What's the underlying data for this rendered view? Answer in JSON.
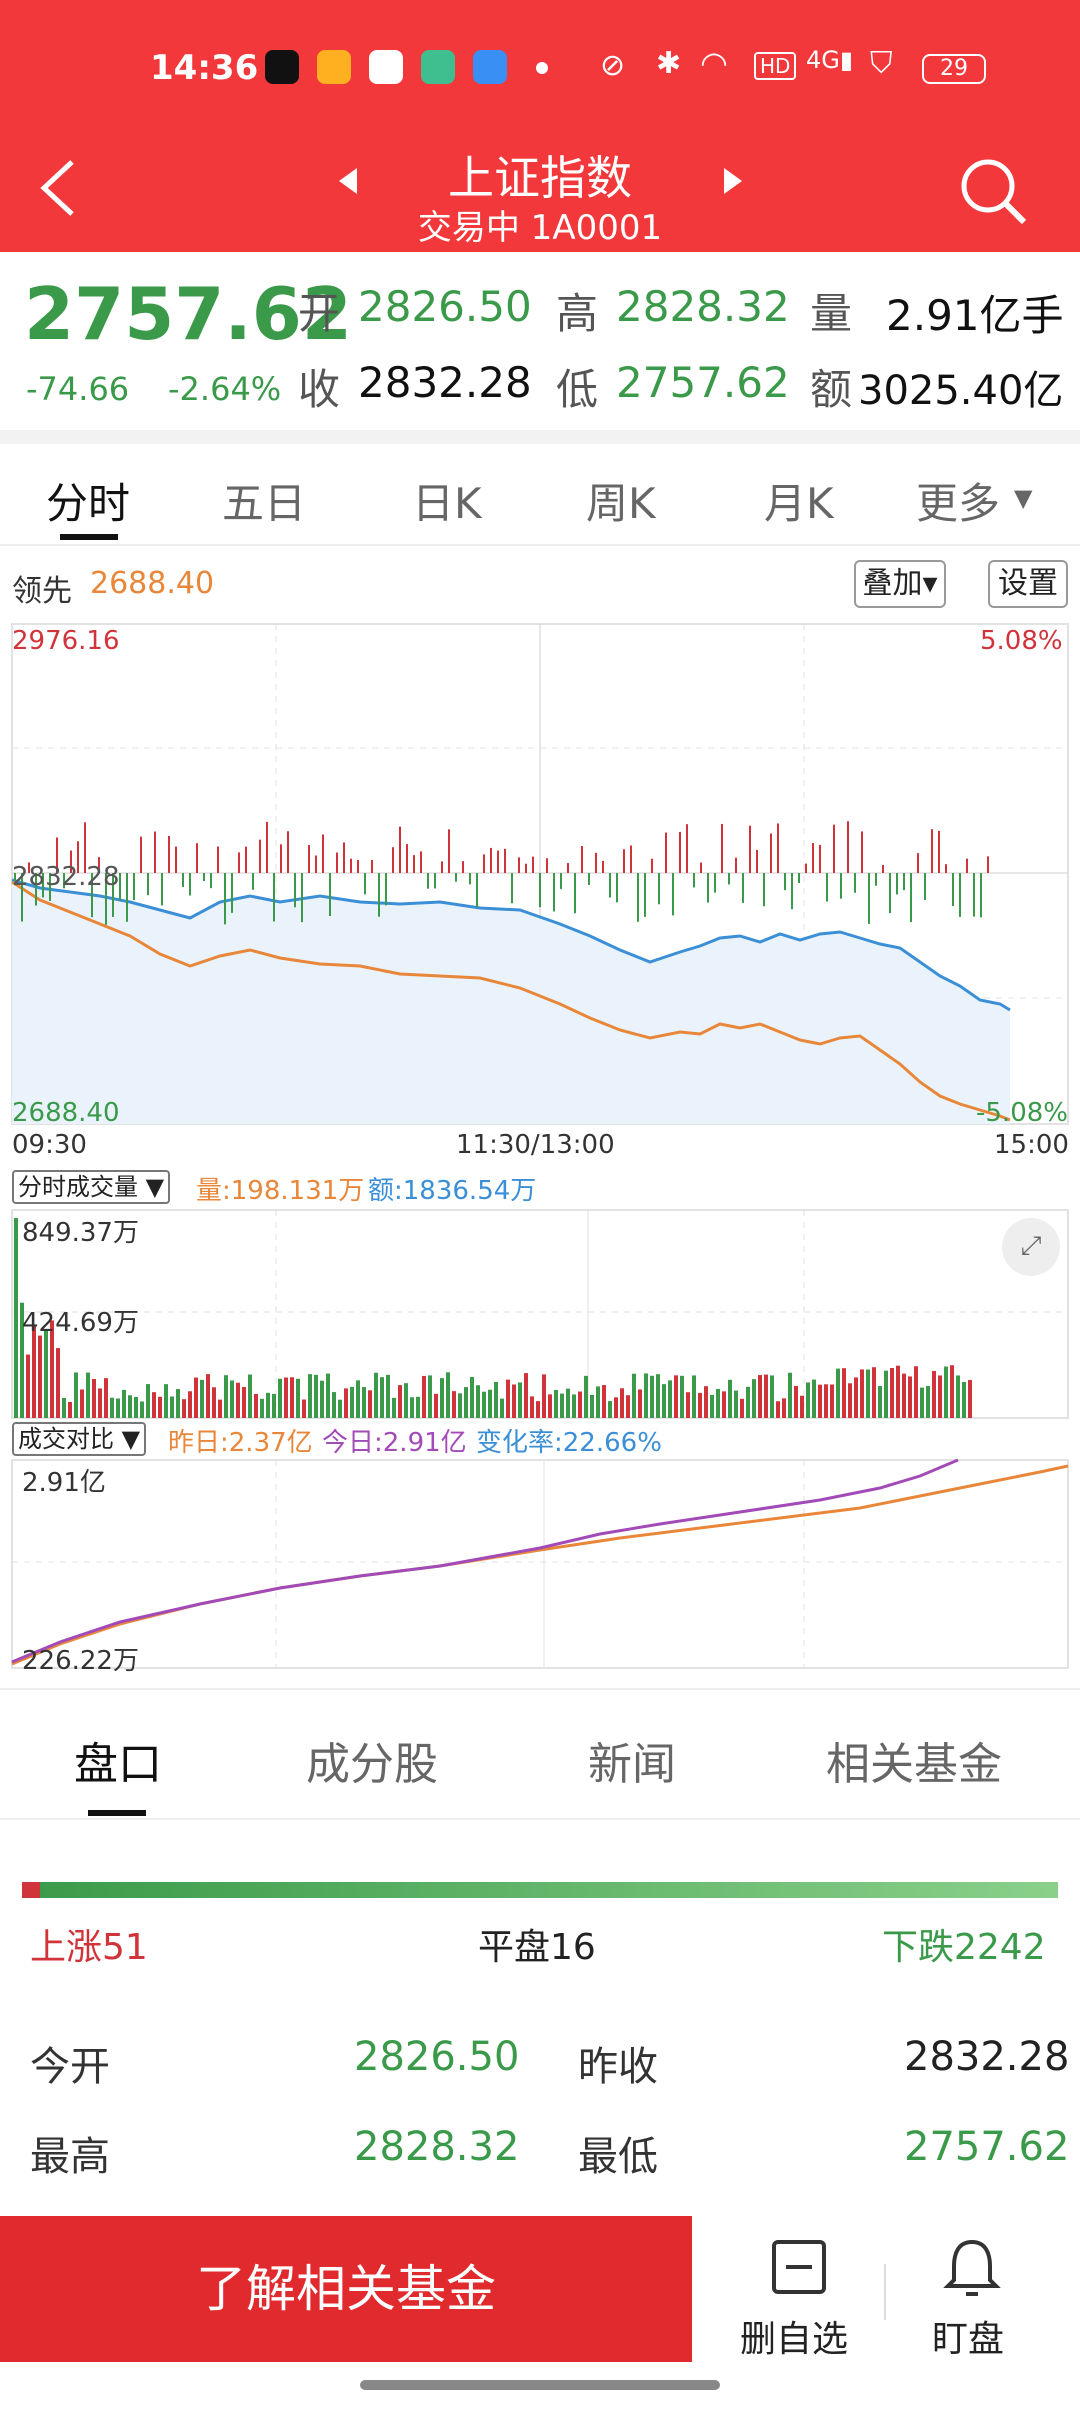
{
  "status": {
    "time": "14:36",
    "battery": "29"
  },
  "header": {
    "title": "上证指数",
    "subtitle": "交易中 1A0001"
  },
  "quote": {
    "price": "2757.62",
    "change": "-74.66",
    "pct": "-2.64%",
    "open_label": "开",
    "open": "2826.50",
    "high_label": "高",
    "high": "2828.32",
    "vol_label": "量",
    "vol": "2.91亿手",
    "close_label": "收",
    "close": "2832.28",
    "low_label": "低",
    "low": "2757.62",
    "amt_label": "额",
    "amt": "3025.40亿"
  },
  "tabs": [
    "分时",
    "五日",
    "日K",
    "周K",
    "月K",
    "更多"
  ],
  "lead": {
    "label": "领先",
    "value": "2688.40",
    "overlay": "叠加▾",
    "settings": "设置"
  },
  "chart_top": {
    "ymax": "2976.16",
    "ymax_pct": "5.08%",
    "mid": "2832.28",
    "ymin": "2688.40",
    "ymin_pct": "-5.08%",
    "t0": "09:30",
    "t1": "11:30/13:00",
    "t2": "15:00"
  },
  "vol_panel": {
    "selector": "分时成交量",
    "vol": "量:198.131万",
    "amt": "额:1836.54万",
    "max": "849.37万",
    "half": "424.69万"
  },
  "cmp_panel": {
    "selector": "成交对比",
    "yday": "昨日:2.37亿",
    "today": "今日:2.91亿",
    "rate": "变化率:22.66%",
    "max": "2.91亿",
    "min": "226.22万"
  },
  "section_tabs": [
    "盘口",
    "成分股",
    "新闻",
    "相关基金"
  ],
  "breadth": {
    "up": "上涨51",
    "flat": "平盘16",
    "down": "下跌2242"
  },
  "details": [
    {
      "l1": "今开",
      "v1": "2826.50",
      "l2": "昨收",
      "v2": "2832.28"
    },
    {
      "l1": "最高",
      "v1": "2828.32",
      "l2": "最低",
      "v2": "2757.62"
    }
  ],
  "bottom": {
    "cta": "了解相关基金",
    "del": "删自选",
    "watch": "盯盘"
  },
  "colors": {
    "brand": "#f2383b",
    "up": "#d0343a",
    "down": "#3a9a4a",
    "line1": "#3b8fd6",
    "line2": "#e8873a"
  }
}
